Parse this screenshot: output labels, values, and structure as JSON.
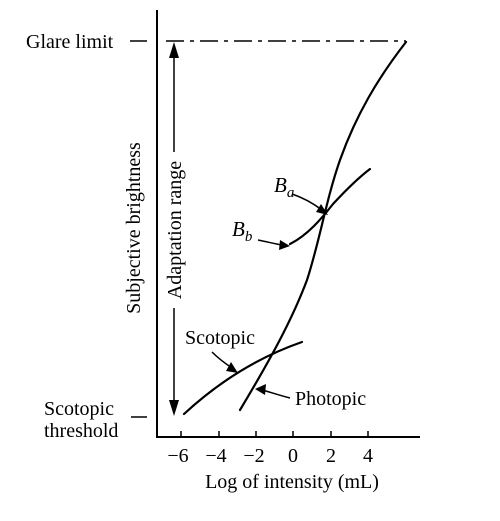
{
  "labels": {
    "y_axis": "Subjective brightness",
    "x_axis": "Log of intensity (mL)",
    "glare_limit": "Glare limit",
    "scotopic_threshold_line1": "Scotopic",
    "scotopic_threshold_line2": "threshold",
    "adaptation_range": "Adaptation range",
    "ba_main": "B",
    "ba_sub": "a",
    "bb_main": "B",
    "bb_sub": "b",
    "scotopic_curve": "Scotopic",
    "photopic_curve": "Photopic"
  },
  "x_ticks": [
    "−6",
    "−4",
    "−2",
    "0",
    "2",
    "4"
  ],
  "colors": {
    "ink": "#000000",
    "background": "#ffffff"
  }
}
